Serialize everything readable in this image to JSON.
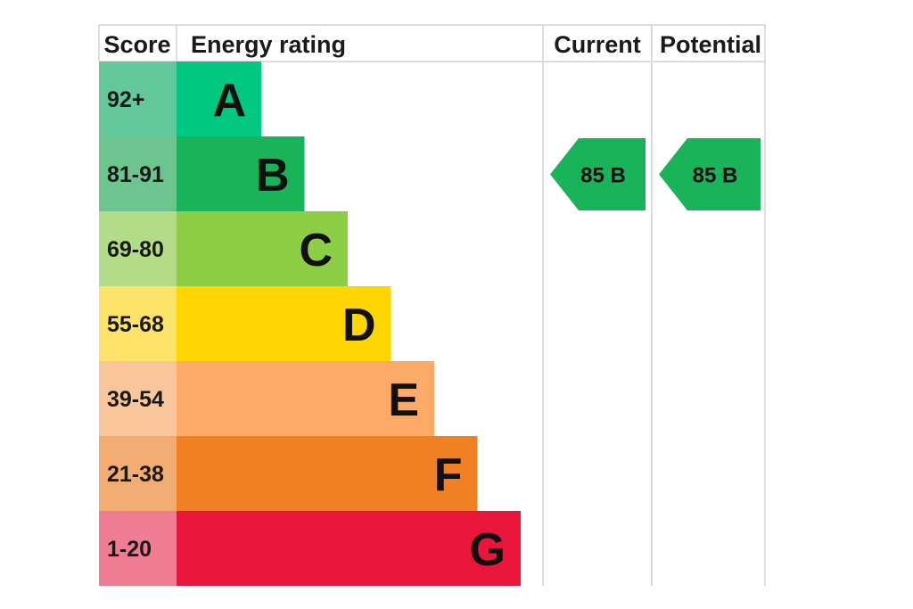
{
  "chart_data": {
    "type": "table",
    "headers": {
      "score": "Score",
      "energy_rating": "Energy rating",
      "current": "Current",
      "potential": "Potential"
    },
    "bands": [
      {
        "letter": "A",
        "score_range": "92+",
        "color": "#00c781",
        "score_color": "#63c79c"
      },
      {
        "letter": "B",
        "score_range": "81-91",
        "color": "#19b459",
        "score_color": "#6cc58d"
      },
      {
        "letter": "C",
        "score_range": "69-80",
        "color": "#8dce46",
        "score_color": "#b3dc88"
      },
      {
        "letter": "D",
        "score_range": "55-68",
        "color": "#ffd500",
        "score_color": "#fde36a"
      },
      {
        "letter": "E",
        "score_range": "39-54",
        "color": "#fcaa65",
        "score_color": "#f9c59a"
      },
      {
        "letter": "F",
        "score_range": "21-38",
        "color": "#ef8023",
        "score_color": "#f2ab70"
      },
      {
        "letter": "G",
        "score_range": "1-20",
        "color": "#e9153b",
        "score_color": "#ef7c92"
      }
    ],
    "current": {
      "score": 85,
      "band": "B",
      "label": "85  B",
      "color": "#19b459"
    },
    "potential": {
      "score": 85,
      "band": "B",
      "label": "85  B",
      "color": "#19b459"
    }
  }
}
